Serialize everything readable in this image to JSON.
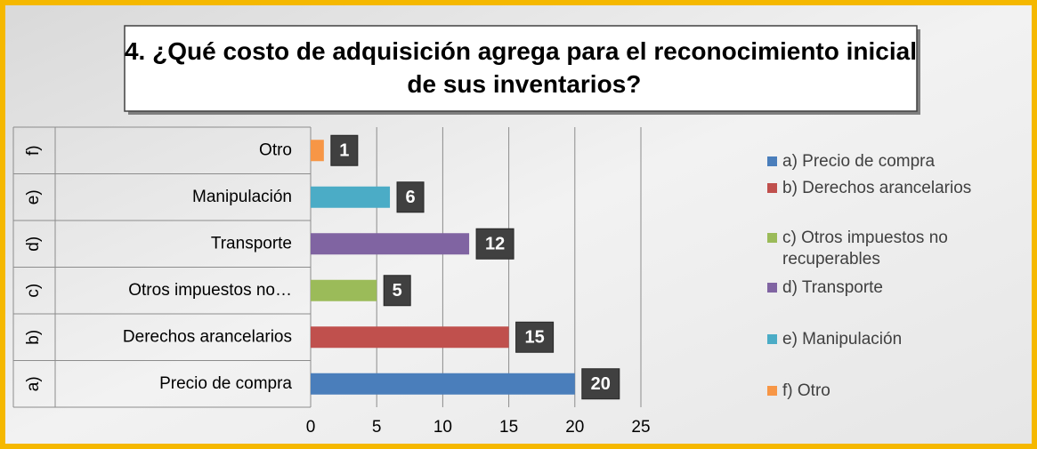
{
  "chart_data": {
    "type": "bar",
    "orientation": "horizontal",
    "title": "4. ¿Qué costo de adquisición agrega para el reconocimiento inicial de sus inventarios?",
    "groups": [
      "a)",
      "b)",
      "c)",
      "d)",
      "e)",
      "f)"
    ],
    "categories": [
      "Precio de compra",
      "Derechos arancelarios",
      "Otros impuestos no…",
      "Transporte",
      "Manipulación",
      "Otro"
    ],
    "values": [
      20,
      15,
      5,
      12,
      6,
      1
    ],
    "colors": [
      "#4a7ebb",
      "#c0504d",
      "#9bbb59",
      "#8064a2",
      "#4bacc6",
      "#f79646"
    ],
    "legend": [
      "a) Precio de compra",
      "b) Derechos arancelarios",
      "c) Otros impuestos no recuperables",
      "d) Transporte",
      "e) Manipulación",
      "f) Otro"
    ],
    "xlim": [
      0,
      25
    ],
    "xticks": [
      0,
      5,
      10,
      15,
      20,
      25
    ],
    "grid": true,
    "legend_position": "right"
  }
}
